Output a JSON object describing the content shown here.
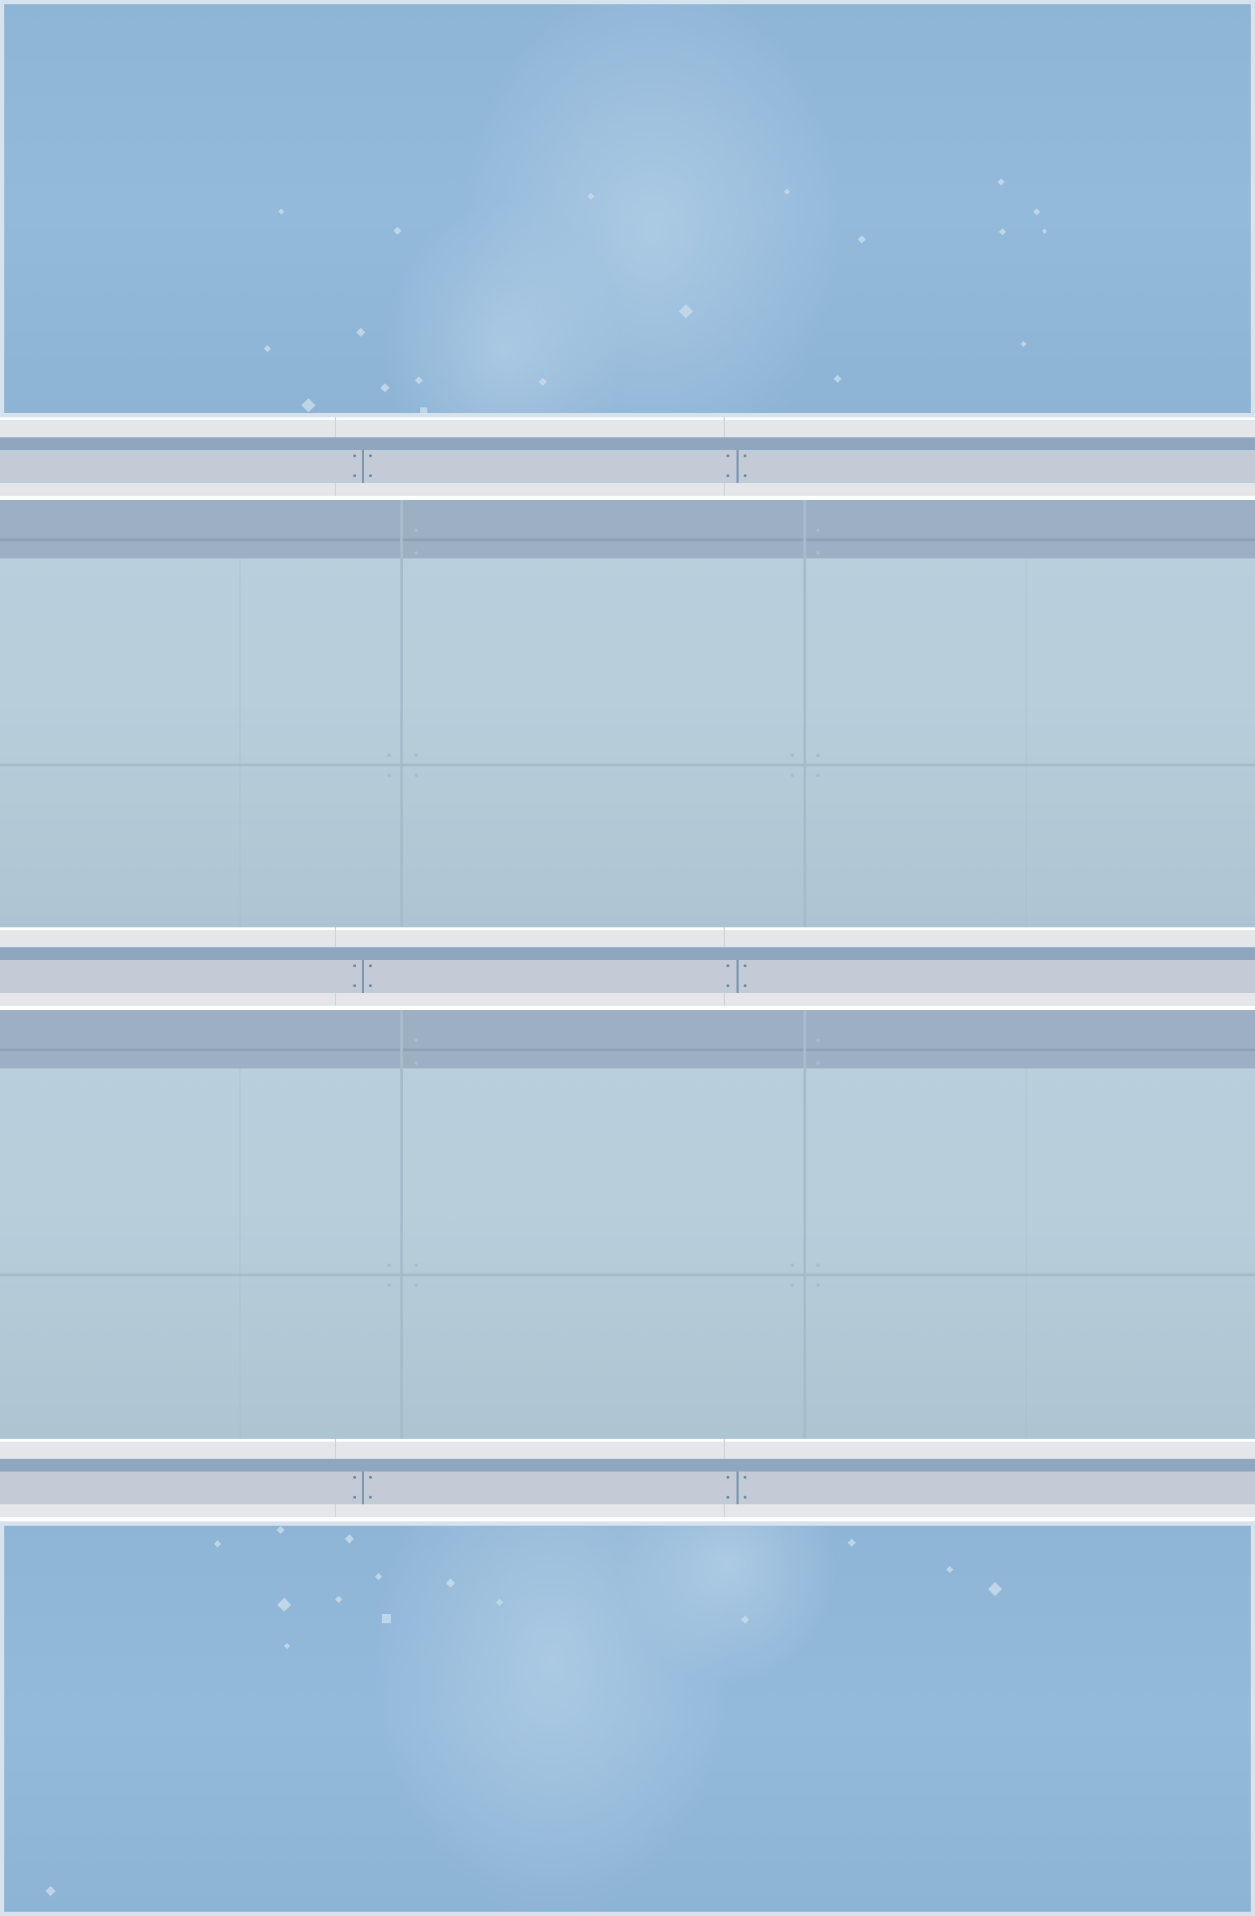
{
  "scene": {
    "name": "sky-corridor-background",
    "colors": {
      "sky": "#8fb5d6",
      "cloud": "#c7dbeb",
      "rail_bar": "#8fa6bf",
      "rail_body": "#c3ccd6",
      "floor_band": "#9dafc2",
      "floor": "#b9cfdc"
    },
    "sections": [
      "sky-top",
      "rail",
      "floor",
      "rail",
      "floor",
      "rail",
      "sky-bottom"
    ]
  }
}
